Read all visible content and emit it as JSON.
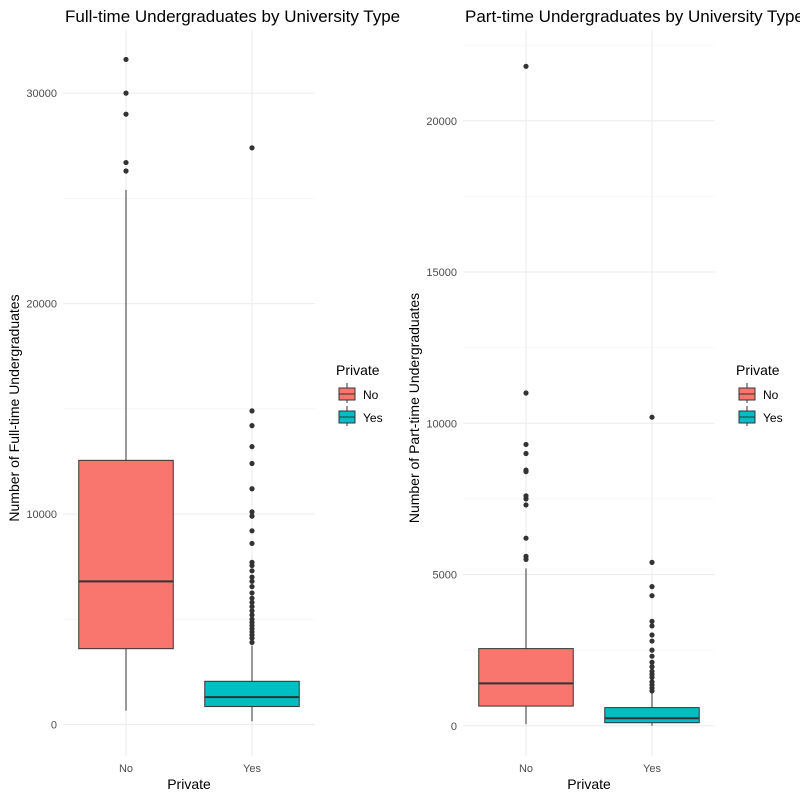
{
  "chart_data": [
    {
      "type": "box",
      "title": "Full-time Undergraduates by University Type",
      "xlabel": "Private",
      "ylabel": "Number of Full-time Undergraduates",
      "categories": [
        "No",
        "Yes"
      ],
      "ylim": [
        -1500,
        33000
      ],
      "yticks": [
        0,
        10000,
        20000,
        30000
      ],
      "grid": true,
      "legend": {
        "title": "Private",
        "position": "right",
        "entries": [
          "No",
          "Yes"
        ]
      },
      "boxes": [
        {
          "category": "No",
          "min": 650,
          "q1": 3600,
          "median": 6800,
          "q3": 12550,
          "max": 25400,
          "outliers": [
            26300,
            26700,
            29000,
            30000,
            31600
          ]
        },
        {
          "category": "Yes",
          "min": 150,
          "q1": 850,
          "median": 1300,
          "q3": 2050,
          "max": 3750,
          "outliers": [
            3900,
            4100,
            4250,
            4400,
            4550,
            4700,
            4850,
            5000,
            5200,
            5400,
            5600,
            5800,
            6000,
            6250,
            6550,
            6800,
            7000,
            7300,
            7550,
            7700,
            8600,
            9200,
            9900,
            10100,
            11200,
            12400,
            13200,
            14200,
            14900,
            27400
          ]
        }
      ]
    },
    {
      "type": "box",
      "title": "Part-time Undergraduates by University Type",
      "xlabel": "Private",
      "ylabel": "Number of Part-time Undergraduates",
      "categories": [
        "No",
        "Yes"
      ],
      "ylim": [
        -1000,
        23000
      ],
      "yticks": [
        0,
        5000,
        10000,
        15000,
        20000
      ],
      "grid": true,
      "legend": {
        "title": "Private",
        "position": "right",
        "entries": [
          "No",
          "Yes"
        ]
      },
      "boxes": [
        {
          "category": "No",
          "min": 50,
          "q1": 650,
          "median": 1400,
          "q3": 2550,
          "max": 5200,
          "outliers": [
            5500,
            5600,
            6200,
            7300,
            7500,
            7600,
            8400,
            8450,
            9000,
            9300,
            11000,
            21800
          ]
        },
        {
          "category": "Yes",
          "min": 0,
          "q1": 100,
          "median": 250,
          "q3": 600,
          "max": 1100,
          "outliers": [
            1150,
            1250,
            1350,
            1450,
            1600,
            1700,
            1800,
            1950,
            2100,
            2300,
            2500,
            2800,
            3000,
            3300,
            3450,
            4300,
            4600,
            5400,
            10200
          ]
        }
      ]
    }
  ],
  "colors": {
    "No": "#F8766D",
    "Yes": "#00BFC4",
    "line": "#333333",
    "point": "#333333"
  }
}
